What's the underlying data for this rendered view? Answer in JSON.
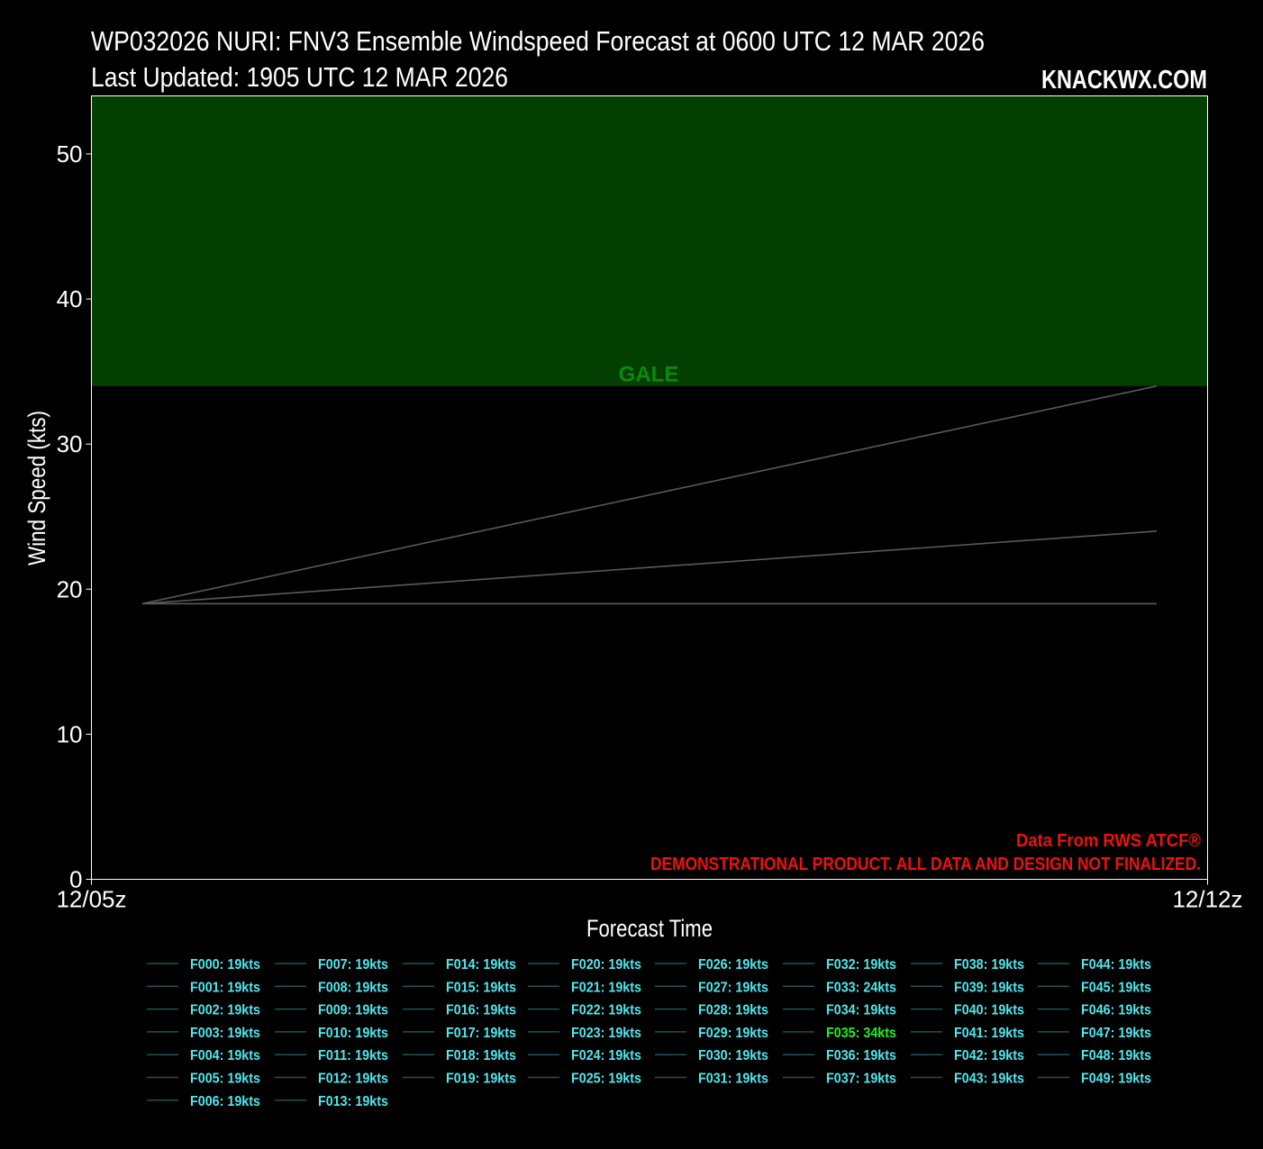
{
  "header": {
    "title_line1": "WP032026 NURI: FNV3 Ensemble Windspeed Forecast at 0600 UTC 12 MAR 2026",
    "title_line2": "Last Updated: 1905 UTC 12 MAR 2026",
    "brand": "KNACKWX.COM"
  },
  "notes": {
    "source": "Data From RWS ATCF®",
    "disclaimer": "DEMONSTRATIONAL PRODUCT. ALL DATA AND DESIGN NOT FINALIZED."
  },
  "colors": {
    "background": "#000000",
    "gale_band": "#033f00",
    "gale_label": "#0a8a0a",
    "member_line": "#5a5a5a",
    "legend_text": "#4ee8ee",
    "legend_highlight": "#22ee22",
    "note_red": "#ee1111"
  },
  "chart_data": {
    "type": "line",
    "xlabel": "Forecast Time",
    "ylabel": "Wind Speed (kts)",
    "ylim": [
      0,
      54
    ],
    "yticks": [
      0,
      10,
      20,
      30,
      40,
      50
    ],
    "x_tick_labels": [
      "12/05z",
      "12/12z"
    ],
    "x": [
      "12/06z",
      "12/12z"
    ],
    "threshold_band": {
      "label": "GALE",
      "from": 34,
      "to": 54
    },
    "series": [
      {
        "values": [
          19,
          34
        ]
      },
      {
        "values": [
          19,
          24
        ]
      },
      {
        "values": [
          19,
          19
        ]
      }
    ],
    "legend": [
      {
        "label": "F000: 19kts"
      },
      {
        "label": "F001: 19kts"
      },
      {
        "label": "F002: 19kts"
      },
      {
        "label": "F003: 19kts"
      },
      {
        "label": "F004: 19kts"
      },
      {
        "label": "F005: 19kts"
      },
      {
        "label": "F006: 19kts"
      },
      {
        "label": "F007: 19kts"
      },
      {
        "label": "F008: 19kts"
      },
      {
        "label": "F009: 19kts"
      },
      {
        "label": "F010: 19kts"
      },
      {
        "label": "F011: 19kts"
      },
      {
        "label": "F012: 19kts"
      },
      {
        "label": "F013: 19kts"
      },
      {
        "label": "F014: 19kts"
      },
      {
        "label": "F015: 19kts"
      },
      {
        "label": "F016: 19kts"
      },
      {
        "label": "F017: 19kts"
      },
      {
        "label": "F018: 19kts"
      },
      {
        "label": "F019: 19kts"
      },
      {
        "label": "F020: 19kts"
      },
      {
        "label": "F021: 19kts"
      },
      {
        "label": "F022: 19kts"
      },
      {
        "label": "F023: 19kts"
      },
      {
        "label": "F024: 19kts"
      },
      {
        "label": "F025: 19kts"
      },
      {
        "label": "F026: 19kts"
      },
      {
        "label": "F027: 19kts"
      },
      {
        "label": "F028: 19kts"
      },
      {
        "label": "F029: 19kts"
      },
      {
        "label": "F030: 19kts"
      },
      {
        "label": "F031: 19kts"
      },
      {
        "label": "F032: 19kts"
      },
      {
        "label": "F033: 24kts"
      },
      {
        "label": "F034: 19kts"
      },
      {
        "label": "F035: 34kts",
        "highlight": true
      },
      {
        "label": "F036: 19kts"
      },
      {
        "label": "F037: 19kts"
      },
      {
        "label": "F038: 19kts"
      },
      {
        "label": "F039: 19kts"
      },
      {
        "label": "F040: 19kts"
      },
      {
        "label": "F041: 19kts"
      },
      {
        "label": "F042: 19kts"
      },
      {
        "label": "F043: 19kts"
      },
      {
        "label": "F044: 19kts"
      },
      {
        "label": "F045: 19kts"
      },
      {
        "label": "F046: 19kts"
      },
      {
        "label": "F047: 19kts"
      },
      {
        "label": "F048: 19kts"
      },
      {
        "label": "F049: 19kts"
      }
    ],
    "legend_columns": [
      7,
      7,
      6,
      6,
      6,
      6,
      6,
      6
    ]
  }
}
